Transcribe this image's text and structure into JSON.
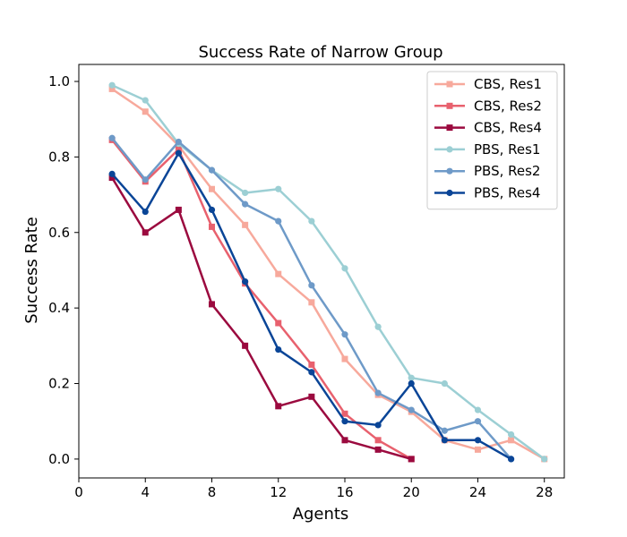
{
  "chart_data": {
    "type": "line",
    "title": "Success Rate of Narrow Group",
    "xlabel": "Agents",
    "ylabel": "Success Rate",
    "xlim": [
      0,
      29.2
    ],
    "ylim": [
      -0.05,
      1.045
    ],
    "xticks": [
      0,
      4,
      8,
      12,
      16,
      20,
      24,
      28
    ],
    "yticks": [
      0.0,
      0.2,
      0.4,
      0.6,
      0.8,
      1.0
    ],
    "xtick_labels": [
      "0",
      "4",
      "8",
      "12",
      "16",
      "20",
      "24",
      "28"
    ],
    "ytick_labels": [
      "0.0",
      "0.2",
      "0.4",
      "0.6",
      "0.8",
      "1.0"
    ],
    "grid": false,
    "legend_position": "top-right",
    "series": [
      {
        "name": "CBS, Res1",
        "color": "#f7a99c",
        "marker": "square",
        "x": [
          2,
          4,
          6,
          8,
          10,
          12,
          14,
          16,
          18,
          20,
          22,
          24,
          26,
          28
        ],
        "values": [
          0.98,
          0.92,
          0.83,
          0.715,
          0.62,
          0.49,
          0.415,
          0.265,
          0.17,
          0.125,
          0.05,
          0.025,
          0.05,
          0.0
        ]
      },
      {
        "name": "CBS, Res2",
        "color": "#e8616e",
        "marker": "square",
        "x": [
          2,
          4,
          6,
          8,
          10,
          12,
          14,
          16,
          18,
          20
        ],
        "values": [
          0.845,
          0.735,
          0.82,
          0.615,
          0.465,
          0.36,
          0.25,
          0.12,
          0.05,
          0.0
        ]
      },
      {
        "name": "CBS, Res4",
        "color": "#9b0a3f",
        "marker": "square",
        "x": [
          2,
          4,
          6,
          8,
          10,
          12,
          14,
          16,
          18,
          20
        ],
        "values": [
          0.745,
          0.6,
          0.66,
          0.41,
          0.3,
          0.14,
          0.165,
          0.05,
          0.025,
          0.0
        ]
      },
      {
        "name": "PBS, Res1",
        "color": "#9ccfd4",
        "marker": "circle",
        "x": [
          2,
          4,
          6,
          8,
          10,
          12,
          14,
          16,
          18,
          20,
          22,
          24,
          26,
          28
        ],
        "values": [
          0.99,
          0.95,
          0.835,
          0.765,
          0.705,
          0.715,
          0.63,
          0.505,
          0.35,
          0.215,
          0.2,
          0.13,
          0.065,
          0.0
        ]
      },
      {
        "name": "PBS, Res2",
        "color": "#6e9ac8",
        "marker": "circle",
        "x": [
          2,
          4,
          6,
          8,
          10,
          12,
          14,
          16,
          18,
          20,
          22,
          24,
          26
        ],
        "values": [
          0.85,
          0.74,
          0.84,
          0.765,
          0.675,
          0.63,
          0.46,
          0.33,
          0.175,
          0.13,
          0.075,
          0.1,
          0.0
        ]
      },
      {
        "name": "PBS, Res4",
        "color": "#0a4597",
        "marker": "circle",
        "x": [
          2,
          4,
          6,
          8,
          10,
          12,
          14,
          16,
          18,
          20,
          22,
          24,
          26
        ],
        "values": [
          0.755,
          0.655,
          0.81,
          0.66,
          0.47,
          0.29,
          0.23,
          0.1,
          0.09,
          0.2,
          0.05,
          0.05,
          0.0
        ]
      }
    ]
  }
}
